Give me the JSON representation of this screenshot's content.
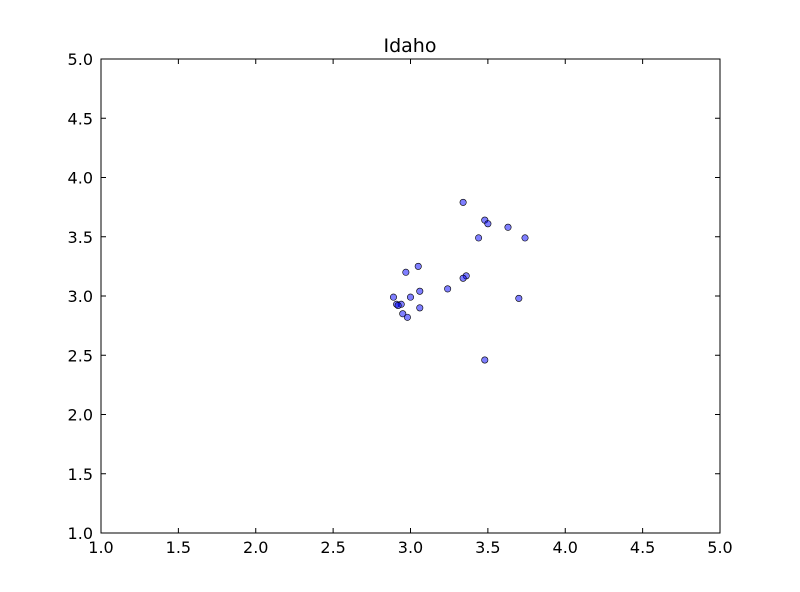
{
  "chart_data": {
    "type": "scatter",
    "title": "Idaho",
    "xlabel": "",
    "ylabel": "",
    "xlim": [
      1.0,
      5.0
    ],
    "ylim": [
      1.0,
      5.0
    ],
    "x_ticks": [
      "1.0",
      "1.5",
      "2.0",
      "2.5",
      "3.0",
      "3.5",
      "4.0",
      "4.5",
      "5.0"
    ],
    "y_ticks": [
      "1.0",
      "1.5",
      "2.0",
      "2.5",
      "3.0",
      "3.5",
      "4.0",
      "4.5",
      "5.0"
    ],
    "grid": false,
    "marker_color": "#0000ff",
    "points": [
      {
        "x": 3.34,
        "y": 3.79
      },
      {
        "x": 3.48,
        "y": 3.64
      },
      {
        "x": 3.5,
        "y": 3.61
      },
      {
        "x": 3.63,
        "y": 3.58
      },
      {
        "x": 3.74,
        "y": 3.49
      },
      {
        "x": 3.44,
        "y": 3.49
      },
      {
        "x": 3.05,
        "y": 3.25
      },
      {
        "x": 2.97,
        "y": 3.2
      },
      {
        "x": 3.36,
        "y": 3.17
      },
      {
        "x": 3.34,
        "y": 3.15
      },
      {
        "x": 3.24,
        "y": 3.06
      },
      {
        "x": 3.06,
        "y": 3.04
      },
      {
        "x": 2.89,
        "y": 2.99
      },
      {
        "x": 3.0,
        "y": 2.99
      },
      {
        "x": 3.7,
        "y": 2.98
      },
      {
        "x": 2.91,
        "y": 2.93
      },
      {
        "x": 2.94,
        "y": 2.93
      },
      {
        "x": 2.92,
        "y": 2.92
      },
      {
        "x": 3.06,
        "y": 2.9
      },
      {
        "x": 2.95,
        "y": 2.85
      },
      {
        "x": 2.98,
        "y": 2.82
      },
      {
        "x": 3.48,
        "y": 2.46
      }
    ]
  }
}
